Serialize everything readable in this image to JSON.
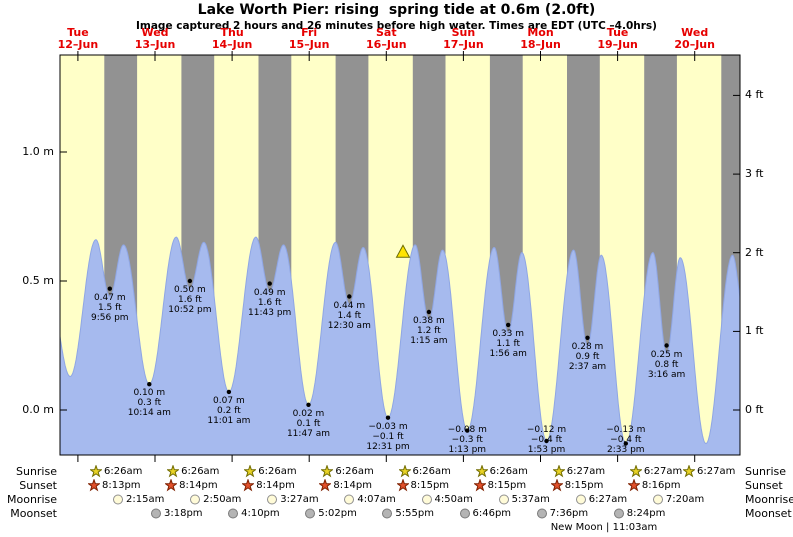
{
  "title": "Lake Worth Pier: rising  spring tide at 0.6m (2.0ft)",
  "subtitle": "Image captured 2 hours and 26 minutes before high water. Times are EDT (UTC –4.0hrs)",
  "colors": {
    "day_bg": "#ffffc8",
    "night_band": "#929292",
    "tide_area": "#a6baee",
    "tide_stroke": "#8fa6e4",
    "axis": "#000000",
    "day_label": "#e60000",
    "extreme_dot": "#000000",
    "marker_fill": "#ffe400",
    "marker_stroke": "#6b6b00"
  },
  "chart_data": {
    "type": "area",
    "title": "Lake Worth Pier: rising  spring tide at 0.6m (2.0ft)",
    "x_axis": "time (days Tue 12-Jun to Wed 20-Jun)",
    "x_start_hours": 6.433,
    "x_end_hours": 218.1,
    "ylim_m": [
      -0.17,
      1.38
    ],
    "grid": false,
    "days": [
      {
        "weekday": "Tue",
        "date": "12–Jun"
      },
      {
        "weekday": "Wed",
        "date": "13–Jun"
      },
      {
        "weekday": "Thu",
        "date": "14–Jun"
      },
      {
        "weekday": "Fri",
        "date": "15–Jun"
      },
      {
        "weekday": "Sat",
        "date": "16–Jun"
      },
      {
        "weekday": "Sun",
        "date": "17–Jun"
      },
      {
        "weekday": "Mon",
        "date": "18–Jun"
      },
      {
        "weekday": "Tue",
        "date": "19–Jun"
      },
      {
        "weekday": "Wed",
        "date": "20–Jun"
      }
    ],
    "y_left_ticks": [
      {
        "label": "0.0 m",
        "value_m": 0.0
      },
      {
        "label": "0.5 m",
        "value_m": 0.5
      },
      {
        "label": "1.0 m",
        "value_m": 1.0
      }
    ],
    "y_right_ticks": [
      {
        "label": "0 ft",
        "value_ft": 0
      },
      {
        "label": "1 ft",
        "value_ft": 1
      },
      {
        "label": "2 ft",
        "value_ft": 2
      },
      {
        "label": "3 ft",
        "value_ft": 3
      },
      {
        "label": "4 ft",
        "value_ft": 4
      }
    ],
    "extremes": [
      {
        "kind": "high",
        "t_hours": 21.933,
        "height_m": 0.47,
        "lines": [
          "0.47 m",
          "1.5 ft",
          "9:56 pm"
        ]
      },
      {
        "kind": "low",
        "t_hours": 34.233,
        "height_m": 0.1,
        "lines": [
          "0.10 m",
          "0.3 ft",
          "10:14 am"
        ]
      },
      {
        "kind": "high",
        "t_hours": 46.867,
        "height_m": 0.5,
        "lines": [
          "0.50 m",
          "1.6 ft",
          "10:52 pm"
        ]
      },
      {
        "kind": "low",
        "t_hours": 59.017,
        "height_m": 0.07,
        "lines": [
          "0.07 m",
          "0.2 ft",
          "11:01 am"
        ]
      },
      {
        "kind": "high",
        "t_hours": 71.717,
        "height_m": 0.49,
        "lines": [
          "0.49 m",
          "1.6 ft",
          "11:43 pm"
        ]
      },
      {
        "kind": "low",
        "t_hours": 83.783,
        "height_m": 0.02,
        "lines": [
          "0.02 m",
          "0.1 ft",
          "11:47 am"
        ]
      },
      {
        "kind": "high",
        "t_hours": 96.5,
        "height_m": 0.44,
        "lines": [
          "0.44 m",
          "1.4 ft",
          "12:30 am"
        ]
      },
      {
        "kind": "low",
        "t_hours": 108.517,
        "height_m": -0.03,
        "lines": [
          "−0.03 m",
          "−0.1 ft",
          "12:31 pm"
        ]
      },
      {
        "kind": "high",
        "t_hours": 121.25,
        "height_m": 0.38,
        "lines": [
          "0.38 m",
          "1.2 ft",
          "1:15 am"
        ]
      },
      {
        "kind": "low",
        "t_hours": 133.217,
        "height_m": -0.08,
        "lines": [
          "−0.08 m",
          "−0.3 ft",
          "1:13 pm"
        ]
      },
      {
        "kind": "high",
        "t_hours": 145.933,
        "height_m": 0.33,
        "lines": [
          "0.33 m",
          "1.1 ft",
          "1:56 am"
        ]
      },
      {
        "kind": "low",
        "t_hours": 157.883,
        "height_m": -0.12,
        "lines": [
          "−0.12 m",
          "−0.4 ft",
          "1:53 pm"
        ]
      },
      {
        "kind": "high",
        "t_hours": 170.617,
        "height_m": 0.28,
        "lines": [
          "0.28 m",
          "0.9 ft",
          "2:37 am"
        ]
      },
      {
        "kind": "low",
        "t_hours": 182.55,
        "height_m": -0.13,
        "lines": [
          "−0.13 m",
          "−0.4 ft",
          "2:33 pm"
        ]
      },
      {
        "kind": "high",
        "t_hours": 195.267,
        "height_m": 0.25,
        "lines": [
          "0.25 m",
          "0.8 ft",
          "3:16 am"
        ]
      }
    ],
    "marker": {
      "symbol": "triangle-up",
      "t_hours": 113.2,
      "height_m": 0.615
    },
    "night_bands": [
      [
        20.217,
        30.433
      ],
      [
        44.233,
        54.433
      ],
      [
        68.233,
        78.433
      ],
      [
        92.233,
        102.433
      ],
      [
        116.25,
        126.433
      ],
      [
        140.25,
        150.45
      ],
      [
        164.25,
        174.45
      ],
      [
        188.267,
        198.45
      ],
      [
        212.267,
        218.1
      ]
    ],
    "curve_extremes": [
      [
        2.0,
        0.55
      ],
      [
        9.6,
        0.13
      ],
      [
        17.6,
        0.66
      ],
      [
        21.933,
        0.44
      ],
      [
        26.2,
        0.64
      ],
      [
        34.233,
        0.1
      ],
      [
        42.6,
        0.67
      ],
      [
        46.867,
        0.47
      ],
      [
        51.2,
        0.65
      ],
      [
        59.017,
        0.07
      ],
      [
        67.4,
        0.67
      ],
      [
        71.717,
        0.46
      ],
      [
        76.0,
        0.64
      ],
      [
        83.783,
        0.02
      ],
      [
        92.2,
        0.65
      ],
      [
        96.5,
        0.41
      ],
      [
        100.8,
        0.63
      ],
      [
        108.517,
        -0.03
      ],
      [
        117.0,
        0.64
      ],
      [
        121.25,
        0.35
      ],
      [
        125.5,
        0.62
      ],
      [
        133.217,
        -0.08
      ],
      [
        141.6,
        0.63
      ],
      [
        145.933,
        0.3
      ],
      [
        150.2,
        0.61
      ],
      [
        157.883,
        -0.12
      ],
      [
        166.3,
        0.62
      ],
      [
        170.617,
        0.25
      ],
      [
        174.9,
        0.6
      ],
      [
        182.55,
        -0.13
      ],
      [
        191.0,
        0.61
      ],
      [
        195.267,
        0.22
      ],
      [
        199.5,
        0.59
      ],
      [
        207.5,
        -0.13
      ],
      [
        215.8,
        0.6
      ],
      [
        219.0,
        0.4
      ]
    ]
  },
  "astro": {
    "rows": [
      {
        "label": "Sunrise",
        "icon": "sunrise-star",
        "shape": "star",
        "icon_fill": "#e9d325",
        "icon_stroke": "#716c00",
        "entries": [
          "6:26am",
          "6:26am",
          "6:26am",
          "6:26am",
          "6:26am",
          "6:26am",
          "6:27am",
          "6:27am",
          "6:27am"
        ]
      },
      {
        "label": "Sunset",
        "icon": "sunset-star",
        "shape": "star",
        "icon_fill": "#e2512b",
        "icon_stroke": "#7e2000",
        "entries": [
          "8:13pm",
          "8:14pm",
          "8:14pm",
          "8:14pm",
          "8:15pm",
          "8:15pm",
          "8:15pm",
          "8:16pm"
        ]
      },
      {
        "label": "Moonrise",
        "icon": "moonrise-circle",
        "shape": "circle",
        "icon_fill": "#fffbd8",
        "icon_stroke": "#8f8f8f",
        "entries": [
          "2:15am",
          "2:50am",
          "3:27am",
          "4:07am",
          "4:50am",
          "5:37am",
          "6:27am",
          "7:20am"
        ]
      },
      {
        "label": "Moonset",
        "icon": "moonset-circle",
        "shape": "circle",
        "icon_fill": "#b4b4b4",
        "icon_stroke": "#7a7a7a",
        "entries": [
          "3:18pm",
          "4:10pm",
          "5:02pm",
          "5:55pm",
          "6:46pm",
          "7:36pm",
          "8:24pm"
        ]
      }
    ],
    "moon_phase": "New Moon | 11:03am"
  }
}
